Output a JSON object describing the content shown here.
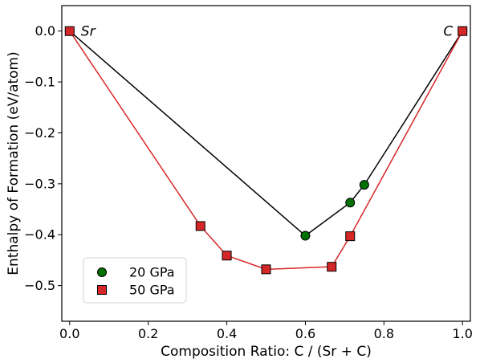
{
  "chart_data": {
    "type": "line",
    "xlabel": "Composition Ratio: C / (Sr + C)",
    "ylabel": "Enthalpy of Formation (eV/atom)",
    "xlim": [
      -0.02,
      1.02
    ],
    "ylim": [
      -0.57,
      0.05
    ],
    "xticks": [
      0.0,
      0.2,
      0.4,
      0.6,
      0.8,
      1.0
    ],
    "yticks": [
      0.0,
      -0.1,
      -0.2,
      -0.3,
      -0.4,
      -0.5
    ],
    "xtick_labels": [
      "0.0",
      "0.2",
      "0.4",
      "0.6",
      "0.8",
      "1.0"
    ],
    "ytick_labels": [
      "0.0",
      "−0.1",
      "−0.2",
      "−0.3",
      "−0.4",
      "−0.5"
    ],
    "grid": false,
    "legend_position": "lower-left",
    "annotations": [
      {
        "text": "Sr",
        "x": 0.0,
        "y": 0.0
      },
      {
        "text": "C",
        "x": 1.0,
        "y": 0.0
      }
    ],
    "series": [
      {
        "name": "20 GPa",
        "marker": "circle",
        "marker_color": "#007000",
        "line_color": "#000000",
        "x": [
          0.0,
          0.6,
          0.714,
          0.75,
          1.0
        ],
        "y": [
          0.0,
          -0.402,
          -0.337,
          -0.302,
          0.0
        ]
      },
      {
        "name": "50 GPa",
        "marker": "square",
        "marker_color": "#d62728",
        "line_color": "#d62728",
        "x": [
          0.0,
          0.333,
          0.4,
          0.5,
          0.667,
          0.714,
          1.0
        ],
        "y": [
          0.0,
          -0.383,
          -0.441,
          -0.468,
          -0.463,
          -0.403,
          0.0
        ]
      }
    ]
  }
}
